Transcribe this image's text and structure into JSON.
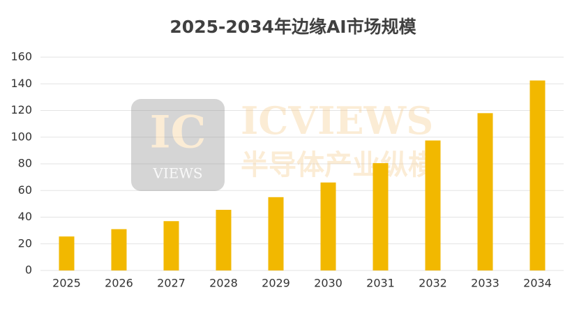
{
  "chart_data": {
    "type": "bar",
    "title": "2025-2034年边缘AI市场规模",
    "categories": [
      "2025",
      "2026",
      "2027",
      "2028",
      "2029",
      "2030",
      "2031",
      "2032",
      "2033",
      "2034"
    ],
    "values": [
      25.5,
      31,
      37,
      45.5,
      55,
      66,
      80.5,
      97.5,
      118,
      142.5
    ],
    "color": "#f2b800",
    "ylim": [
      0,
      160
    ],
    "yticks": [
      0,
      20,
      40,
      60,
      80,
      100,
      120,
      140,
      160
    ],
    "grid": true
  },
  "watermark": {
    "logo": "IC",
    "logo_sub": "VIEWS",
    "name": "ICVIEWS",
    "tagline": "半导体产业纵横"
  }
}
